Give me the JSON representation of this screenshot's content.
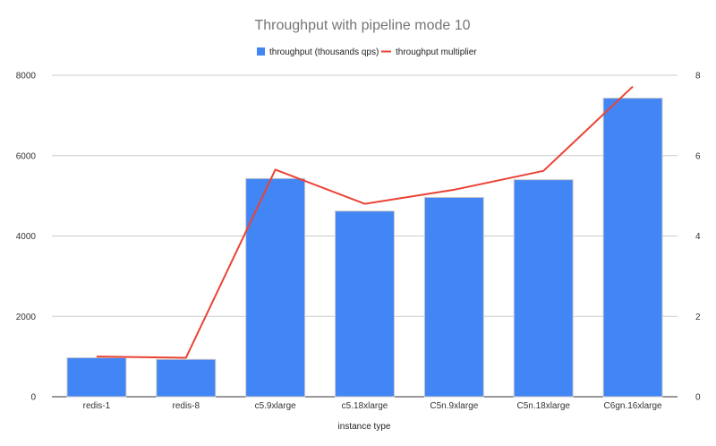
{
  "chart_data": {
    "type": "bar",
    "title": "Throughput with pipeline mode 10",
    "xlabel": "instance type",
    "categories": [
      "redis-1",
      "redis-8",
      "c5.9xlarge",
      "c5.18xlarge",
      "C5n.9xlarge",
      "C5n.18xlarge",
      "C6gn.16xlarge"
    ],
    "series": [
      {
        "name": "throughput (thousands qps)",
        "kind": "bar",
        "axis": "left",
        "color": "#4285f4",
        "values": [
          970,
          930,
          5430,
          4620,
          4960,
          5400,
          7430
        ]
      },
      {
        "name": "throughput multiplier",
        "kind": "line",
        "axis": "right",
        "color": "#ea4335",
        "values": [
          1.0,
          0.97,
          5.65,
          4.8,
          5.15,
          5.62,
          7.72
        ]
      }
    ],
    "ylim_left": [
      0,
      8000
    ],
    "yticks_left": [
      "0",
      "2000",
      "4000",
      "6000",
      "8000"
    ],
    "ylim_right": [
      0,
      8
    ],
    "yticks_right": [
      "0",
      "2",
      "4",
      "6",
      "8"
    ],
    "grid": true,
    "legend_position": "top"
  }
}
